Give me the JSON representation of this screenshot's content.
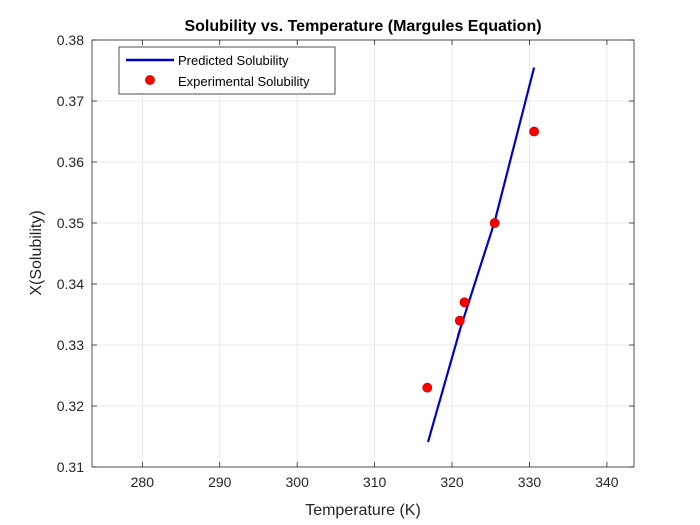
{
  "chart_data": {
    "type": "line",
    "title": "Solubility vs. Temperature (Margules Equation)",
    "xlabel": "Temperature (K)",
    "ylabel": "X(Solubility)",
    "xlim": [
      273.5,
      343.5
    ],
    "ylim": [
      0.31,
      0.38
    ],
    "xticks": [
      280,
      290,
      300,
      310,
      320,
      330,
      340
    ],
    "yticks": [
      0.31,
      0.32,
      0.33,
      0.34,
      0.35,
      0.36,
      0.37,
      0.38
    ],
    "xtick_labels": [
      "280",
      "290",
      "300",
      "310",
      "320",
      "330",
      "340"
    ],
    "ytick_labels": [
      "0.31",
      "0.32",
      "0.33",
      "0.34",
      "0.35",
      "0.36",
      "0.37",
      "0.38"
    ],
    "grid": true,
    "legend_position": "top-left",
    "series": [
      {
        "name": "Predicted Solubility",
        "kind": "line",
        "color": "#0000cc",
        "x": [
          316.9,
          321.0,
          320.8,
          325.5,
          330.6
        ],
        "y": [
          0.3141,
          0.3324,
          0.3316,
          0.3502,
          0.3755
        ]
      },
      {
        "name": "Experimental Solubility",
        "kind": "scatter",
        "color": "#ff0000",
        "x": [
          316.8,
          321.0,
          321.6,
          325.5,
          330.6
        ],
        "y": [
          0.323,
          0.334,
          0.337,
          0.35,
          0.365
        ]
      }
    ]
  }
}
